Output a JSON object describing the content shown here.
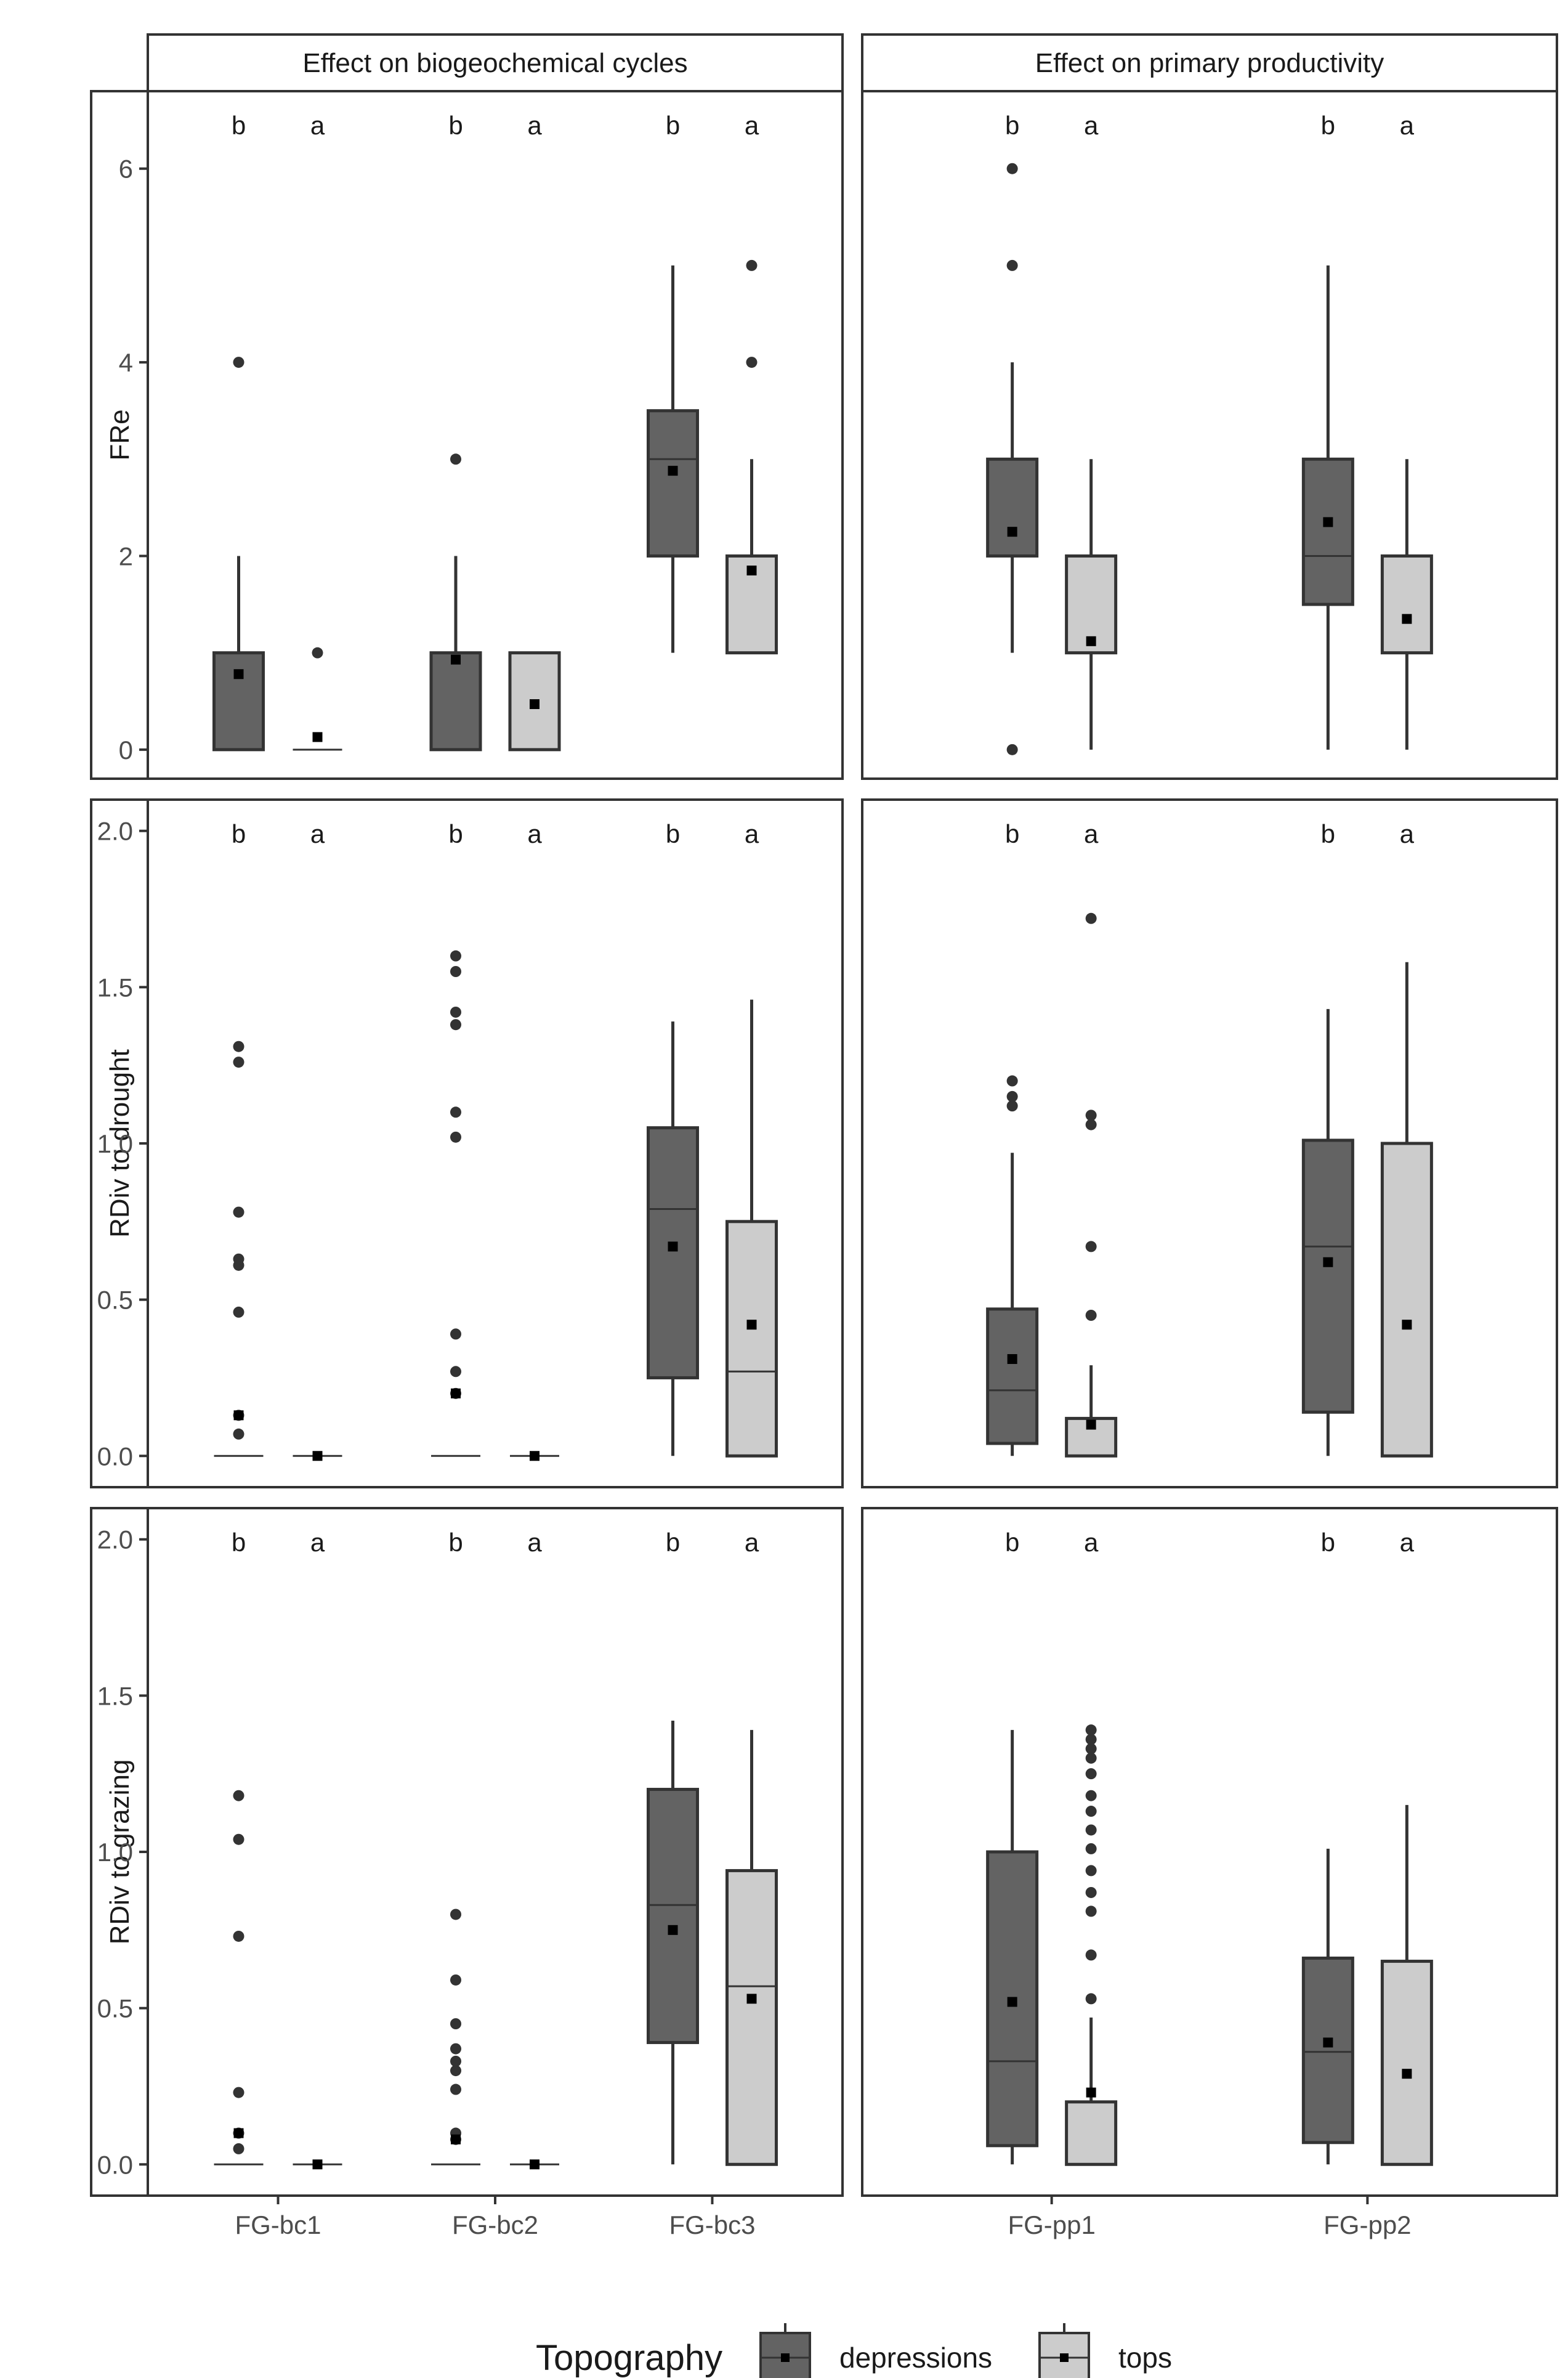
{
  "chart_data": {
    "type": "boxplot",
    "title": "",
    "legend": {
      "title": "Topography",
      "position": "bottom",
      "entries": [
        {
          "name": "depressions",
          "fill": "#636363"
        },
        {
          "name": "tops",
          "fill": "#cccccc"
        }
      ]
    },
    "columns": [
      {
        "strip": "Effect on biogeochemical cycles",
        "categories": [
          "FG-bc1",
          "FG-bc2",
          "FG-bc3"
        ]
      },
      {
        "strip": "Effect on primary productivity",
        "categories": [
          "FG-pp1",
          "FG-pp2"
        ]
      }
    ],
    "rows": [
      {
        "strip": "FRe",
        "ylim": [
          -0.3,
          6.8
        ],
        "yticks": [
          0,
          2,
          4,
          6
        ],
        "ytick_labels": [
          "0",
          "2",
          "4",
          "6"
        ]
      },
      {
        "strip": "RDiv to drought",
        "ylim": [
          -0.1,
          2.1
        ],
        "yticks": [
          0,
          0.5,
          1,
          1.5,
          2
        ],
        "ytick_labels": [
          "0.0",
          "0.5",
          "1.0",
          "1.5",
          "2.0"
        ]
      },
      {
        "strip": "RDiv to grazing",
        "ylim": [
          -0.1,
          2.1
        ],
        "yticks": [
          0,
          0.5,
          1,
          1.5,
          2
        ],
        "ytick_labels": [
          "0.0",
          "0.5",
          "1.0",
          "1.5",
          "2.0"
        ]
      }
    ],
    "letters": {
      "depressions": "b",
      "tops": "a"
    },
    "panels": [
      {
        "row": 0,
        "col": 0,
        "groups": [
          {
            "category": "FG-bc1",
            "series": "depressions",
            "q1": 0,
            "median": 0,
            "q3": 1,
            "whisker_low": 0,
            "whisker_high": 2,
            "mean": 0.78,
            "outliers": [
              4
            ]
          },
          {
            "category": "FG-bc1",
            "series": "tops",
            "q1": 0,
            "median": 0,
            "q3": 0,
            "whisker_low": 0,
            "whisker_high": 0,
            "mean": 0.13,
            "outliers": [
              1
            ]
          },
          {
            "category": "FG-bc2",
            "series": "depressions",
            "q1": 0,
            "median": 1,
            "q3": 1,
            "whisker_low": 0,
            "whisker_high": 2,
            "mean": 0.93,
            "outliers": [
              3
            ]
          },
          {
            "category": "FG-bc2",
            "series": "tops",
            "q1": 0,
            "median": 1,
            "q3": 1,
            "whisker_low": 0,
            "whisker_high": 1,
            "mean": 0.47,
            "outliers": []
          },
          {
            "category": "FG-bc3",
            "series": "depressions",
            "q1": 2,
            "median": 3,
            "q3": 3.5,
            "whisker_low": 1,
            "whisker_high": 5,
            "mean": 2.88,
            "outliers": []
          },
          {
            "category": "FG-bc3",
            "series": "tops",
            "q1": 1,
            "median": 2,
            "q3": 2,
            "whisker_low": 1,
            "whisker_high": 3,
            "mean": 1.85,
            "outliers": [
              4,
              5
            ]
          }
        ]
      },
      {
        "row": 0,
        "col": 1,
        "groups": [
          {
            "category": "FG-pp1",
            "series": "depressions",
            "q1": 2,
            "median": 3,
            "q3": 3,
            "whisker_low": 1,
            "whisker_high": 4,
            "mean": 2.25,
            "outliers": [
              0,
              5,
              6
            ]
          },
          {
            "category": "FG-pp1",
            "series": "tops",
            "q1": 1,
            "median": 2,
            "q3": 2,
            "whisker_low": 0,
            "whisker_high": 3,
            "mean": 1.12,
            "outliers": []
          },
          {
            "category": "FG-pp2",
            "series": "depressions",
            "q1": 1.5,
            "median": 2,
            "q3": 3,
            "whisker_low": 0,
            "whisker_high": 5,
            "mean": 2.35,
            "outliers": []
          },
          {
            "category": "FG-pp2",
            "series": "tops",
            "q1": 1,
            "median": 2,
            "q3": 2,
            "whisker_low": 0,
            "whisker_high": 3,
            "mean": 1.35,
            "outliers": []
          }
        ]
      },
      {
        "row": 1,
        "col": 0,
        "groups": [
          {
            "category": "FG-bc1",
            "series": "depressions",
            "q1": 0,
            "median": 0,
            "q3": 0,
            "whisker_low": 0,
            "whisker_high": 0,
            "mean": 0.13,
            "outliers": [
              0.07,
              0.13,
              0.46,
              0.61,
              0.63,
              0.78,
              1.26,
              1.31
            ]
          },
          {
            "category": "FG-bc1",
            "series": "tops",
            "q1": 0,
            "median": 0,
            "q3": 0,
            "whisker_low": 0,
            "whisker_high": 0,
            "mean": 0.0,
            "outliers": []
          },
          {
            "category": "FG-bc2",
            "series": "depressions",
            "q1": 0,
            "median": 0,
            "q3": 0,
            "whisker_low": 0,
            "whisker_high": 0,
            "mean": 0.2,
            "outliers": [
              0.2,
              0.27,
              0.39,
              1.02,
              1.1,
              1.38,
              1.42,
              1.55,
              1.6
            ]
          },
          {
            "category": "FG-bc2",
            "series": "tops",
            "q1": 0,
            "median": 0,
            "q3": 0,
            "whisker_low": 0,
            "whisker_high": 0,
            "mean": 0.0,
            "outliers": []
          },
          {
            "category": "FG-bc3",
            "series": "depressions",
            "q1": 0.25,
            "median": 0.79,
            "q3": 1.05,
            "whisker_low": 0,
            "whisker_high": 1.39,
            "mean": 0.67,
            "outliers": []
          },
          {
            "category": "FG-bc3",
            "series": "tops",
            "q1": 0,
            "median": 0.27,
            "q3": 0.75,
            "whisker_low": 0,
            "whisker_high": 1.46,
            "mean": 0.42,
            "outliers": []
          }
        ]
      },
      {
        "row": 1,
        "col": 1,
        "groups": [
          {
            "category": "FG-pp1",
            "series": "depressions",
            "q1": 0.04,
            "median": 0.21,
            "q3": 0.47,
            "whisker_low": 0,
            "whisker_high": 0.97,
            "mean": 0.31,
            "outliers": [
              1.12,
              1.15,
              1.2
            ]
          },
          {
            "category": "FG-pp1",
            "series": "tops",
            "q1": 0,
            "median": 0,
            "q3": 0.12,
            "whisker_low": 0,
            "whisker_high": 0.29,
            "mean": 0.1,
            "outliers": [
              0.45,
              0.67,
              1.06,
              1.09,
              1.72
            ]
          },
          {
            "category": "FG-pp2",
            "series": "depressions",
            "q1": 0.14,
            "median": 0.67,
            "q3": 1.01,
            "whisker_low": 0,
            "whisker_high": 1.43,
            "mean": 0.62,
            "outliers": []
          },
          {
            "category": "FG-pp2",
            "series": "tops",
            "q1": 0,
            "median": 1.0,
            "q3": 1.0,
            "whisker_low": 0,
            "whisker_high": 1.58,
            "mean": 0.42,
            "outliers": []
          }
        ]
      },
      {
        "row": 2,
        "col": 0,
        "groups": [
          {
            "category": "FG-bc1",
            "series": "depressions",
            "q1": 0,
            "median": 0,
            "q3": 0,
            "whisker_low": 0,
            "whisker_high": 0,
            "mean": 0.1,
            "outliers": [
              0.05,
              0.1,
              0.23,
              0.73,
              1.04,
              1.18
            ]
          },
          {
            "category": "FG-bc1",
            "series": "tops",
            "q1": 0,
            "median": 0,
            "q3": 0,
            "whisker_low": 0,
            "whisker_high": 0,
            "mean": 0.0,
            "outliers": []
          },
          {
            "category": "FG-bc2",
            "series": "depressions",
            "q1": 0,
            "median": 0,
            "q3": 0,
            "whisker_low": 0,
            "whisker_high": 0,
            "mean": 0.08,
            "outliers": [
              0.08,
              0.1,
              0.24,
              0.3,
              0.33,
              0.37,
              0.45,
              0.59,
              0.8
            ]
          },
          {
            "category": "FG-bc2",
            "series": "tops",
            "q1": 0,
            "median": 0,
            "q3": 0,
            "whisker_low": 0,
            "whisker_high": 0,
            "mean": 0.0,
            "outliers": []
          },
          {
            "category": "FG-bc3",
            "series": "depressions",
            "q1": 0.39,
            "median": 0.83,
            "q3": 1.2,
            "whisker_low": 0,
            "whisker_high": 1.42,
            "mean": 0.75,
            "outliers": []
          },
          {
            "category": "FG-bc3",
            "series": "tops",
            "q1": 0,
            "median": 0.57,
            "q3": 0.94,
            "whisker_low": 0,
            "whisker_high": 1.39,
            "mean": 0.53,
            "outliers": []
          }
        ]
      },
      {
        "row": 2,
        "col": 1,
        "groups": [
          {
            "category": "FG-pp1",
            "series": "depressions",
            "q1": 0.06,
            "median": 0.33,
            "q3": 1.0,
            "whisker_low": 0,
            "whisker_high": 1.39,
            "mean": 0.52,
            "outliers": []
          },
          {
            "category": "FG-pp1",
            "series": "tops",
            "q1": 0,
            "median": 0,
            "q3": 0.2,
            "whisker_low": 0,
            "whisker_high": 0.47,
            "mean": 0.23,
            "outliers": [
              0.53,
              0.67,
              0.81,
              0.87,
              0.94,
              1.01,
              1.07,
              1.13,
              1.18,
              1.25,
              1.3,
              1.33,
              1.36,
              1.39
            ]
          },
          {
            "category": "FG-pp2",
            "series": "depressions",
            "q1": 0.07,
            "median": 0.36,
            "q3": 0.66,
            "whisker_low": 0,
            "whisker_high": 1.01,
            "mean": 0.39,
            "outliers": []
          },
          {
            "category": "FG-pp2",
            "series": "tops",
            "q1": 0,
            "median": 0.65,
            "q3": 0.65,
            "whisker_low": 0,
            "whisker_high": 1.15,
            "mean": 0.29,
            "outliers": []
          }
        ]
      }
    ]
  }
}
